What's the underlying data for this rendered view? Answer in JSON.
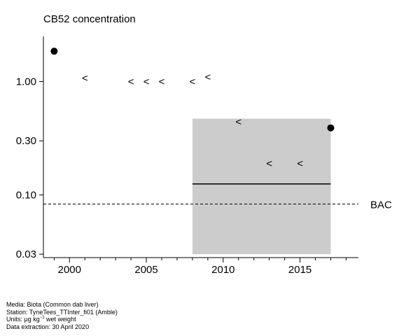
{
  "title": "CB52 concentration",
  "chart_data": {
    "type": "scatter",
    "title": "CB52 concentration",
    "xlabel": "",
    "ylabel": "",
    "y_scale": "log",
    "xlim": [
      1998.3,
      2018.8
    ],
    "ylim": [
      0.028,
      2.5
    ],
    "x_ticks": [
      2000,
      2005,
      2010,
      2015
    ],
    "x_minor_ticks": [
      1999,
      2001,
      2002,
      2003,
      2004,
      2006,
      2007,
      2008,
      2009,
      2011,
      2012,
      2013,
      2014,
      2016,
      2017,
      2018
    ],
    "y_ticks": [
      {
        "value": 0.03,
        "label": "0.03"
      },
      {
        "value": 0.1,
        "label": "0.10"
      },
      {
        "value": 0.3,
        "label": "0.30"
      },
      {
        "value": 1.0,
        "label": "1.00"
      }
    ],
    "measured": [
      {
        "x": 1999,
        "y": 1.85
      },
      {
        "x": 2017,
        "y": 0.39
      }
    ],
    "less_than": [
      {
        "x": 2001,
        "y": 1.07
      },
      {
        "x": 2004,
        "y": 1.0
      },
      {
        "x": 2005,
        "y": 1.0
      },
      {
        "x": 2006,
        "y": 1.0
      },
      {
        "x": 2008,
        "y": 1.0
      },
      {
        "x": 2009,
        "y": 1.1
      },
      {
        "x": 2011,
        "y": 0.44
      },
      {
        "x": 2013,
        "y": 0.19
      },
      {
        "x": 2015,
        "y": 0.19
      }
    ],
    "less_than_symbol": "<",
    "assessment_band": {
      "x_start": 2008,
      "x_end": 2017,
      "y_low": 0.03,
      "y_high": 0.47
    },
    "trend_line": {
      "x_start": 2008,
      "x_end": 2017,
      "y": 0.125
    },
    "reference_line": {
      "label": "BAC",
      "y": 0.083
    },
    "colors": {
      "band": "#cccccc",
      "points": "#000000",
      "lines": "#000000"
    }
  },
  "footer": {
    "media": "Media: Biota (Common dab liver)",
    "station": "Station: TyneTees_TTInter_fi01 (Amble)",
    "units_prefix": "Units:  µg kg",
    "units_sup": "−1",
    "units_suffix": " wet weight",
    "extraction": "Data extraction: 30 April 2020"
  }
}
